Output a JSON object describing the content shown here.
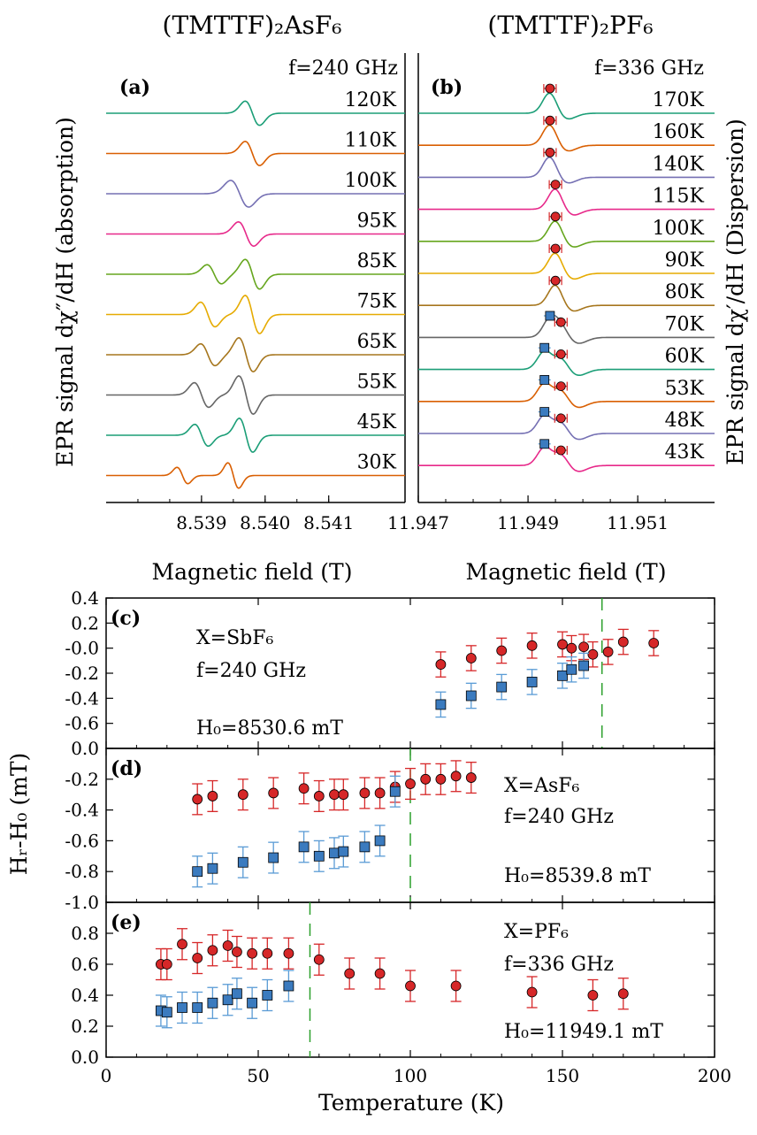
{
  "top": {
    "left_title": "(TMTTF)₂AsF₆",
    "right_title": "(TMTTF)₂PF₆",
    "left_ylabel": "EPR signal dχ″/dH (absorption)",
    "right_ylabel": "EPR signal dχ′/dH (Dispersion)",
    "left_xlabel": "Magnetic field (T)",
    "right_xlabel": "Magnetic field (T)"
  },
  "bottom": {
    "ylabel": "Hᵣ-H₀ (mT)",
    "xlabel": "Temperature (K)"
  },
  "colors": {
    "red_marker": "#d62728",
    "blue_marker": "#3b7bbf",
    "error_blue": "#5a9bd5",
    "vline": "#2ca02c"
  },
  "chart_data": [
    {
      "type": "line",
      "panel": "(a)",
      "annotation": "f=240 GHz",
      "xlabel": "Magnetic field (T)",
      "xlim": [
        8.5375,
        8.5422
      ],
      "xticks": [
        "8.539",
        "8.540",
        "8.541"
      ],
      "xtick_values": [
        8.539,
        8.54,
        8.541
      ],
      "series": [
        {
          "name": "120K",
          "color": "#1b9e77",
          "x0": 8.5398,
          "w": 0.00016,
          "amp": 1.0,
          "mode": "single"
        },
        {
          "name": "110K",
          "color": "#d95f02",
          "x0": 8.5398,
          "w": 0.00016,
          "amp": 1.0,
          "mode": "single"
        },
        {
          "name": "100K",
          "color": "#7570b3",
          "x0": 8.5396,
          "w": 0.0002,
          "amp": 1.1,
          "mode": "single"
        },
        {
          "name": "95K",
          "color": "#e7298a",
          "x0": 8.5397,
          "w": 0.00017,
          "amp": 1.0,
          "mode": "single"
        },
        {
          "name": "85K",
          "color": "#66a61e",
          "x0": 8.5392,
          "x1": 8.5398,
          "w": 0.00016,
          "amp": 1.4,
          "mode": "double"
        },
        {
          "name": "75K",
          "color": "#e6ab02",
          "x0": 8.5391,
          "x1": 8.5398,
          "w": 0.00016,
          "amp": 1.8,
          "mode": "double"
        },
        {
          "name": "65K",
          "color": "#a6761d",
          "x0": 8.5391,
          "x1": 8.5397,
          "w": 0.00016,
          "amp": 1.6,
          "mode": "double"
        },
        {
          "name": "55K",
          "color": "#666666",
          "x0": 8.539,
          "x1": 8.5397,
          "w": 0.00016,
          "amp": 1.8,
          "mode": "double"
        },
        {
          "name": "45K",
          "color": "#1b9e77",
          "x0": 8.539,
          "x1": 8.5397,
          "w": 0.00015,
          "amp": 1.6,
          "mode": "double"
        },
        {
          "name": "30K",
          "color": "#d95f02",
          "x0": 8.5387,
          "x1": 8.5395,
          "w": 0.00012,
          "amp": 1.2,
          "mode": "double"
        }
      ]
    },
    {
      "type": "line",
      "panel": "(b)",
      "annotation": "f=336 GHz",
      "xlabel": "Magnetic field (T)",
      "xlim": [
        11.947,
        11.9524
      ],
      "xticks": [
        "11.947",
        "11.949",
        "11.951"
      ],
      "xtick_values": [
        11.947,
        11.949,
        11.951
      ],
      "series": [
        {
          "name": "170K",
          "color": "#1b9e77",
          "peak": 11.9494,
          "peak2": null
        },
        {
          "name": "160K",
          "color": "#d95f02",
          "peak": 11.9494,
          "peak2": null
        },
        {
          "name": "140K",
          "color": "#7570b3",
          "peak": 11.9494,
          "peak2": null
        },
        {
          "name": "115K",
          "color": "#e7298a",
          "peak": 11.9495,
          "peak2": null
        },
        {
          "name": "100K",
          "color": "#66a61e",
          "peak": 11.9495,
          "peak2": null
        },
        {
          "name": "90K",
          "color": "#e6ab02",
          "peak": 11.9495,
          "peak2": null
        },
        {
          "name": "80K",
          "color": "#a6761d",
          "peak": 11.9495,
          "peak2": null
        },
        {
          "name": "70K",
          "color": "#666666",
          "peak": 11.9494,
          "peak2": 11.9496
        },
        {
          "name": "60K",
          "color": "#1b9e77",
          "peak": 11.9493,
          "peak2": 11.9496
        },
        {
          "name": "53K",
          "color": "#d95f02",
          "peak": 11.9493,
          "peak2": 11.9496
        },
        {
          "name": "48K",
          "color": "#7570b3",
          "peak": 11.9493,
          "peak2": 11.9496
        },
        {
          "name": "43K",
          "color": "#e7298a",
          "peak": 11.9493,
          "peak2": 11.9496
        }
      ]
    },
    {
      "type": "scatter",
      "panel": "(c)",
      "notes": [
        "X=SbF₆",
        "f=240 GHz",
        "H₀=8530.6 mT"
      ],
      "xlim": [
        0,
        200
      ],
      "ylim": [
        -0.8,
        0.4
      ],
      "yticks": [
        "0.4",
        "0.2",
        "-0.0",
        "-0.2",
        "-0.4",
        "-0.6"
      ],
      "ytick_values": [
        0.4,
        0.2,
        0.0,
        -0.2,
        -0.4,
        -0.6
      ],
      "vline_x": 163,
      "series": [
        {
          "name": "red",
          "x": [
            110,
            120,
            130,
            140,
            150,
            153,
            157,
            160,
            165,
            170,
            180
          ],
          "y": [
            -0.13,
            -0.08,
            -0.02,
            0.02,
            0.03,
            0.0,
            0.01,
            -0.05,
            -0.03,
            0.05,
            0.04
          ],
          "err": 0.1
        },
        {
          "name": "blue",
          "x": [
            110,
            120,
            130,
            140,
            150,
            153,
            157
          ],
          "y": [
            -0.45,
            -0.38,
            -0.31,
            -0.27,
            -0.22,
            -0.17,
            -0.14
          ],
          "err": 0.1
        }
      ]
    },
    {
      "type": "scatter",
      "panel": "(d)",
      "notes": [
        "X=AsF₆",
        "f=240 GHz",
        "H₀=8539.8 mT"
      ],
      "xlim": [
        0,
        200
      ],
      "ylim": [
        -1.0,
        0.0
      ],
      "yticks": [
        "0.0",
        "-0.2",
        "-0.4",
        "-0.6",
        "-0.8",
        "-1.0"
      ],
      "ytick_values": [
        0.0,
        -0.2,
        -0.4,
        -0.6,
        -0.8,
        -1.0
      ],
      "vline_x": 100,
      "series": [
        {
          "name": "red",
          "x": [
            30,
            35,
            45,
            55,
            65,
            70,
            75,
            78,
            85,
            90,
            95,
            100,
            105,
            110,
            115,
            120
          ],
          "y": [
            -0.33,
            -0.31,
            -0.3,
            -0.29,
            -0.26,
            -0.31,
            -0.3,
            -0.3,
            -0.29,
            -0.29,
            -0.25,
            -0.23,
            -0.2,
            -0.2,
            -0.18,
            -0.19
          ],
          "err": 0.1
        },
        {
          "name": "blue",
          "x": [
            30,
            35,
            45,
            55,
            65,
            70,
            75,
            78,
            85,
            90,
            95
          ],
          "y": [
            -0.8,
            -0.78,
            -0.74,
            -0.71,
            -0.64,
            -0.7,
            -0.68,
            -0.67,
            -0.64,
            -0.6,
            -0.28
          ],
          "err": 0.1
        }
      ]
    },
    {
      "type": "scatter",
      "panel": "(e)",
      "notes": [
        "X=PF₆",
        "f=336 GHz",
        "H₀=11949.1 mT"
      ],
      "xlabel": "Temperature (K)",
      "xlim": [
        0,
        200
      ],
      "ylim": [
        0.0,
        1.0
      ],
      "yticks": [
        "0.8",
        "0.6",
        "0.4",
        "0.2",
        "0.0"
      ],
      "ytick_values": [
        0.8,
        0.6,
        0.4,
        0.2,
        0.0
      ],
      "xticks": [
        "0",
        "50",
        "100",
        "150",
        "200"
      ],
      "xtick_values": [
        0,
        50,
        100,
        150,
        200
      ],
      "vline_x": 67,
      "series": [
        {
          "name": "red",
          "x": [
            18,
            20,
            25,
            30,
            35,
            40,
            43,
            48,
            53,
            60,
            70,
            80,
            90,
            100,
            115,
            140,
            160,
            170
          ],
          "y": [
            0.6,
            0.6,
            0.73,
            0.64,
            0.69,
            0.72,
            0.68,
            0.67,
            0.67,
            0.67,
            0.63,
            0.54,
            0.54,
            0.46,
            0.46,
            0.42,
            0.4,
            0.41
          ],
          "err": 0.1
        },
        {
          "name": "blue",
          "x": [
            18,
            20,
            25,
            30,
            35,
            40,
            43,
            48,
            53,
            60
          ],
          "y": [
            0.3,
            0.29,
            0.32,
            0.32,
            0.35,
            0.37,
            0.41,
            0.35,
            0.4,
            0.46
          ],
          "err": 0.1
        }
      ]
    }
  ]
}
